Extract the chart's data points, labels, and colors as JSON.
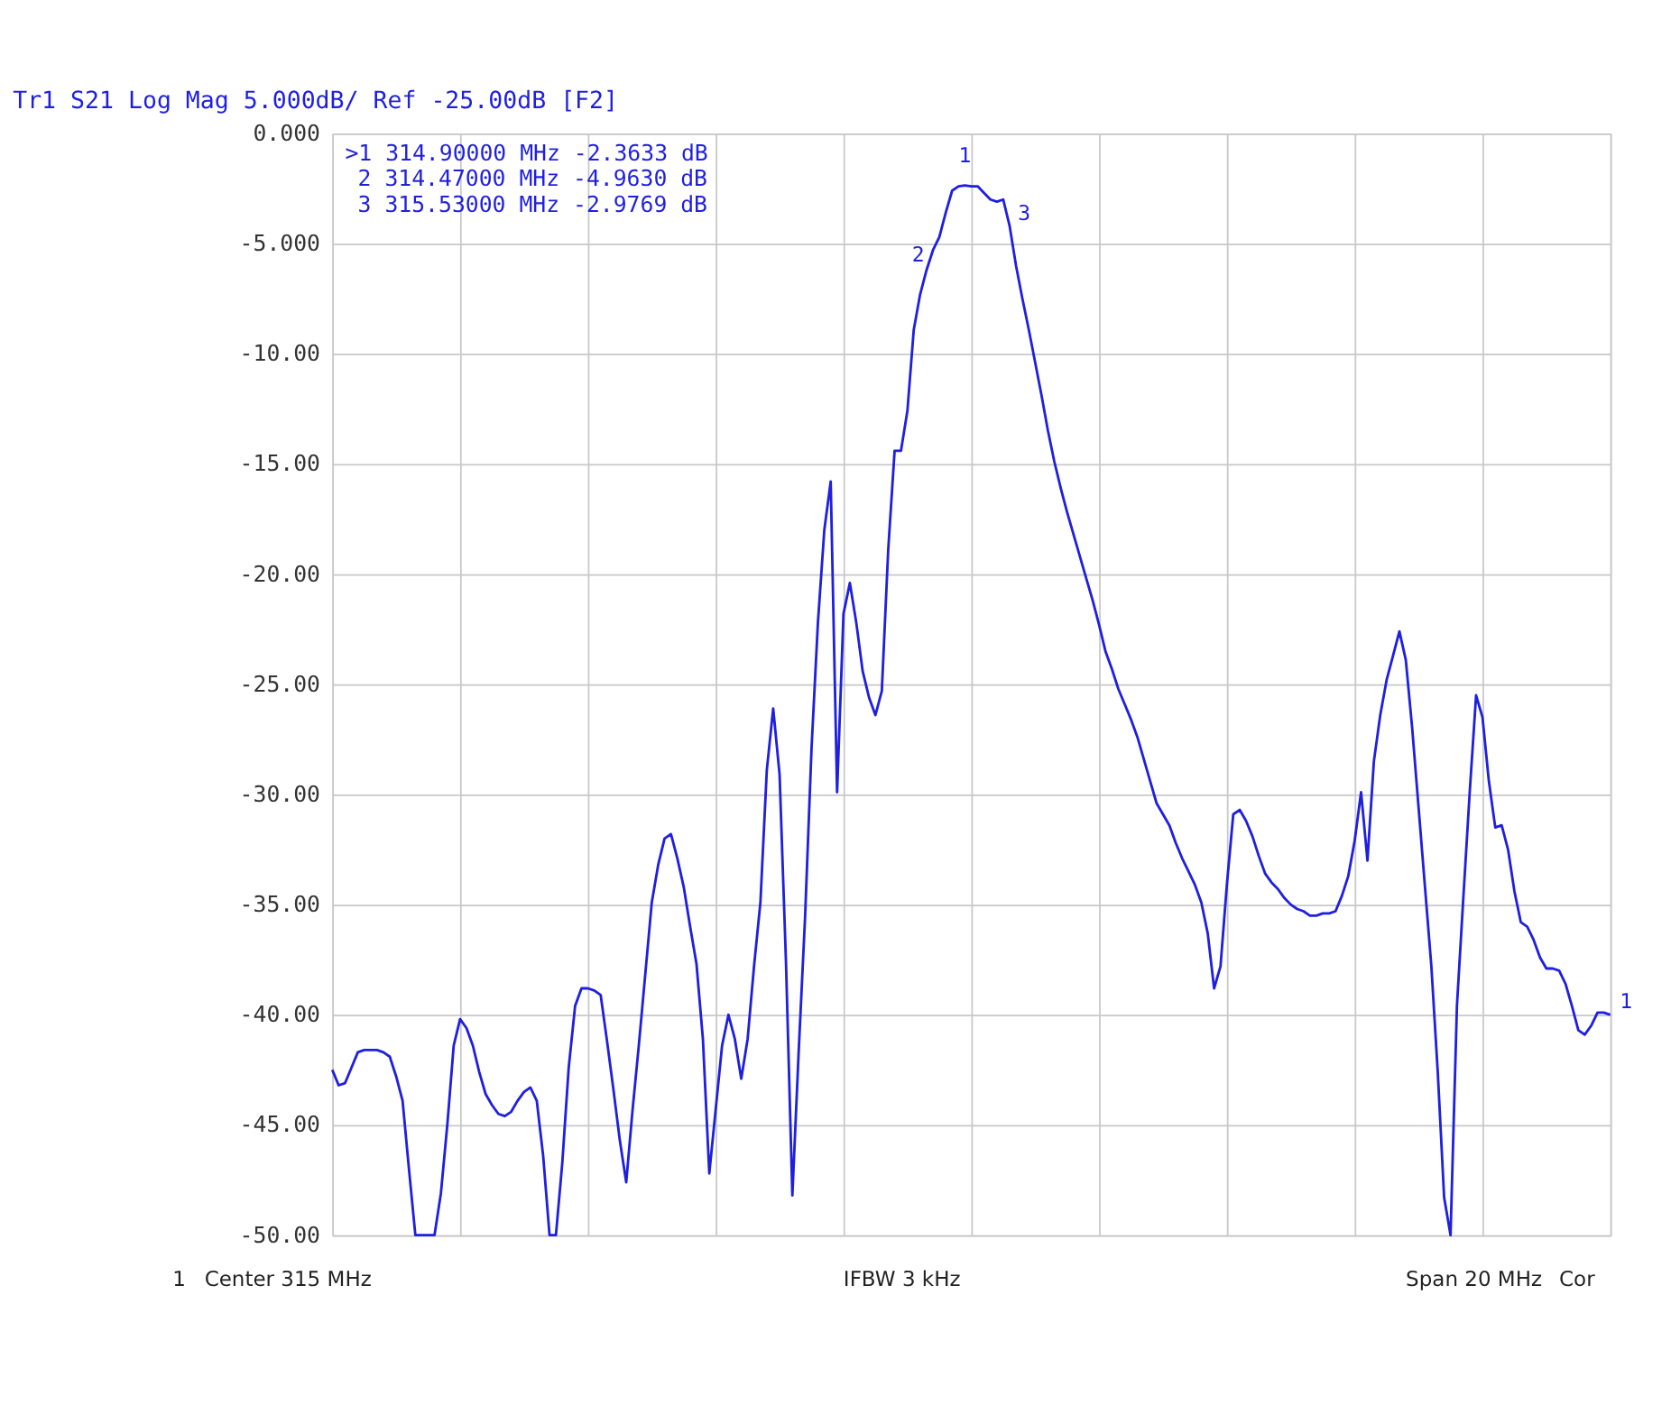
{
  "chart_data": {
    "type": "line",
    "title": "Tr1 S21 Log Mag 5.000dB/ Ref -25.00dB [F2]",
    "categories": [
      null,
      null,
      null,
      null,
      null,
      null,
      null,
      null,
      null,
      null,
      null,
      null,
      null,
      null,
      null,
      null,
      null,
      null,
      null,
      null,
      null,
      null,
      null,
      null,
      null,
      null,
      null,
      null,
      null,
      null,
      null,
      null,
      null,
      null,
      null,
      null,
      null,
      null,
      null,
      null,
      null,
      null,
      null,
      null,
      null,
      null,
      null,
      null,
      null,
      null,
      null,
      null,
      null,
      null,
      null,
      null,
      null,
      null,
      null,
      null,
      null,
      null,
      null,
      null,
      null,
      null,
      null,
      null,
      null,
      null,
      null,
      null,
      null,
      null,
      null,
      null,
      null,
      null,
      null,
      null,
      null,
      null,
      null,
      null,
      null,
      null,
      null,
      null,
      null,
      null,
      null,
      null,
      null,
      null,
      null,
      null,
      null,
      null,
      null,
      null,
      null,
      null,
      null,
      null,
      null,
      null,
      null,
      null,
      null,
      null,
      null,
      null,
      null,
      null,
      null,
      null,
      null,
      null,
      null,
      null,
      null,
      null,
      null,
      null,
      null,
      null,
      null,
      null,
      null,
      null,
      null,
      null,
      null,
      null,
      null,
      null,
      null,
      null,
      null,
      null,
      null,
      null,
      null,
      null,
      null,
      null,
      null,
      null,
      null,
      null,
      null,
      null,
      null,
      null,
      null,
      null,
      null,
      null,
      null,
      null,
      null,
      null,
      null,
      null,
      null,
      null,
      null,
      null,
      null,
      null,
      null,
      null,
      null,
      null,
      null,
      null,
      null,
      null,
      null,
      null,
      null,
      null,
      null,
      null,
      null,
      null,
      null,
      null,
      null,
      null,
      null,
      null,
      null,
      null,
      null,
      null,
      null,
      null,
      null,
      null,
      null
    ],
    "series": [
      {
        "color": "#1f1fe0",
        "values": [
          -42.5,
          -43.2,
          -43.1,
          -42.4,
          -41.7,
          -41.6,
          -41.6,
          -41.6,
          -41.7,
          -41.9,
          -42.8,
          -43.9,
          -47.0,
          -50,
          -50,
          -50,
          -50,
          -48.1,
          -45.0,
          -41.4,
          -40.2,
          -40.6,
          -41.4,
          -42.6,
          -43.6,
          -44.1,
          -44.5,
          -44.6,
          -44.4,
          -43.9,
          -43.5,
          -43.3,
          -43.9,
          -46.4,
          -50,
          -50,
          -46.7,
          -42.4,
          -39.6,
          -38.8,
          -38.8,
          -38.9,
          -39.1,
          -41.2,
          -43.4,
          -45.7,
          -47.6,
          -44.3,
          -41.3,
          -38.1,
          -34.9,
          -33.2,
          -32.0,
          -31.8,
          -32.9,
          -34.2,
          -36.0,
          -37.7,
          -41.1,
          -47.2,
          -44.3,
          -41.4,
          -40.0,
          -41.1,
          -42.9,
          -41.1,
          -37.8,
          -34.9,
          -28.9,
          -26.1,
          -29.1,
          -37.6,
          -48.2,
          -41.6,
          -35.5,
          -27.9,
          -22.2,
          -18.0,
          -15.8,
          -29.9,
          -21.8,
          -20.4,
          -22.2,
          -24.4,
          -25.6,
          -26.4,
          -25.3,
          -18.9,
          -14.4,
          -14.4,
          -12.6,
          -8.9,
          -7.3,
          -6.2,
          -5.3,
          -4.7,
          -3.6,
          -2.6,
          -2.4,
          -2.36,
          -2.4,
          -2.4,
          -2.7,
          -3.0,
          -3.1,
          -3.0,
          -4.2,
          -6.0,
          -7.5,
          -8.9,
          -10.4,
          -11.9,
          -13.5,
          -14.9,
          -16.1,
          -17.2,
          -18.2,
          -19.2,
          -20.2,
          -21.2,
          -22.3,
          -23.5,
          -24.3,
          -25.2,
          -25.9,
          -26.6,
          -27.4,
          -28.4,
          -29.4,
          -30.4,
          -30.9,
          -31.4,
          -32.2,
          -32.9,
          -33.5,
          -34.1,
          -34.9,
          -36.3,
          -38.8,
          -37.8,
          -34.1,
          -30.9,
          -30.7,
          -31.2,
          -31.9,
          -32.8,
          -33.6,
          -34.0,
          -34.3,
          -34.7,
          -35.0,
          -35.2,
          -35.3,
          -35.5,
          -35.5,
          -35.4,
          -35.4,
          -35.3,
          -34.6,
          -33.7,
          -32.1,
          -29.9,
          -33.0,
          -28.5,
          -26.4,
          -24.8,
          -23.7,
          -22.6,
          -23.9,
          -27.0,
          -30.6,
          -34.2,
          -37.8,
          -42.6,
          -48.3,
          -50,
          -39.6,
          -34.7,
          -29.9,
          -25.5,
          -26.5,
          -29.4,
          -31.5,
          -31.4,
          -32.5,
          -34.4,
          -35.8,
          -36.0,
          -36.6,
          -37.4,
          -37.9,
          -37.9,
          -38.0,
          -38.6,
          -39.6,
          -40.7,
          -40.9,
          -40.5,
          -39.9,
          -39.9,
          -40.0
        ]
      }
    ],
    "ylim": [
      -50,
      0
    ],
    "yticks": [
      {
        "value": 0,
        "label": "0.000"
      },
      {
        "value": -5,
        "label": "-5.000"
      },
      {
        "value": -10,
        "label": "-10.00"
      },
      {
        "value": -15,
        "label": "-15.00"
      },
      {
        "value": -20,
        "label": "-20.00"
      },
      {
        "value": -25,
        "label": "-25.00"
      },
      {
        "value": -30,
        "label": "-30.00"
      },
      {
        "value": -35,
        "label": "-35.00"
      },
      {
        "value": -40,
        "label": "-40.00"
      },
      {
        "value": -45,
        "label": "-45.00"
      },
      {
        "value": -50,
        "label": "-50.00"
      }
    ],
    "tick_labels": "y",
    "grid": true,
    "marker": "none",
    "line_style": "solid",
    "annotations": [
      ">1   314.90000 MHz -2.3633 dB",
      "2   314.47000 MHz -4.9630 dB",
      "3   315.53000 MHz -2.9769 dB",
      "1",
      "2",
      "3",
      "1",
      "1",
      "Center 315 MHz",
      "IFBW 3 kHz",
      "Span 20 MHz",
      "Cor"
    ]
  }
}
